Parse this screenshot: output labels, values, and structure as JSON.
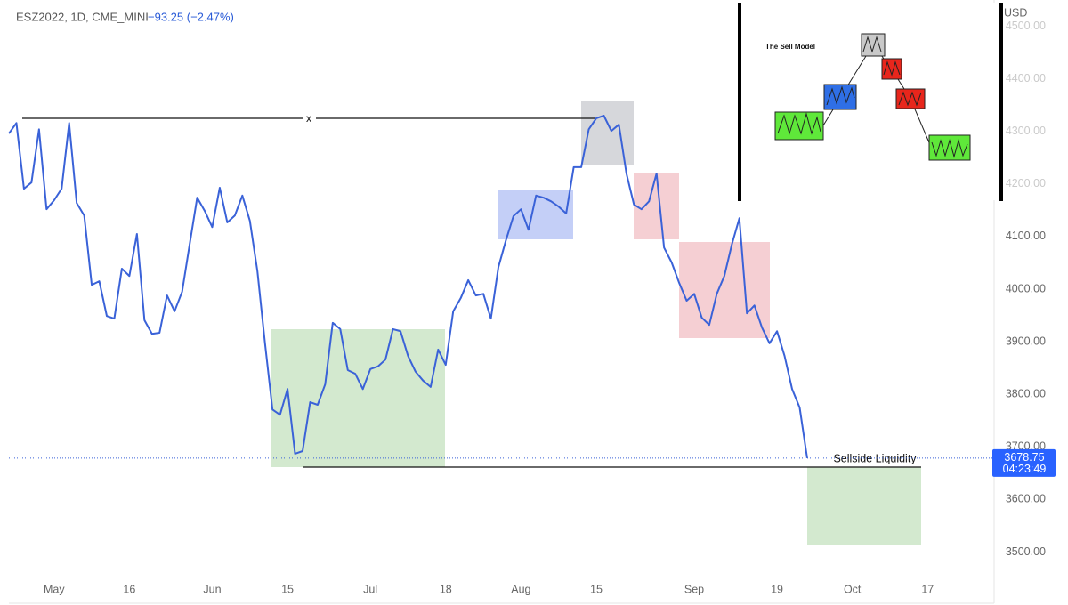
{
  "chart_data": {
    "type": "line",
    "title": "ESZ2022, 1D, CME_MINI",
    "subtitle": "−93.25 (−2.47%)",
    "unit": "USD",
    "countdown": "04:23:49",
    "annotations": {
      "level_marker": "x",
      "liquidity": "Sellside Liquidity",
      "inset_title": "The Sell Model"
    },
    "color": "#3a62d8",
    "grid": false,
    "ylim": [
      3450,
      4550
    ],
    "yticks": [
      {
        "value": 3500,
        "label": "3500.00"
      },
      {
        "value": 3600,
        "label": "3600.00"
      },
      {
        "value": 3700,
        "label": "3700.00"
      },
      {
        "value": 3800,
        "label": "3800.00"
      },
      {
        "value": 3900,
        "label": "3900.00"
      },
      {
        "value": 4000,
        "label": "4000.00"
      },
      {
        "value": 4100,
        "label": "4100.00"
      },
      {
        "value": 4200,
        "label": "4200.00"
      },
      {
        "value": 4300,
        "label": "4300.00"
      },
      {
        "value": 4400,
        "label": "4400.00"
      },
      {
        "value": 4500,
        "label": "4500.00"
      }
    ],
    "categories": [
      null,
      null,
      null,
      null,
      null,
      null,
      "May",
      null,
      null,
      null,
      null,
      null,
      null,
      null,
      null,
      null,
      "16",
      null,
      null,
      null,
      null,
      null,
      null,
      null,
      null,
      null,
      null,
      "Jun",
      null,
      null,
      null,
      null,
      null,
      null,
      null,
      null,
      null,
      "15",
      null,
      null,
      null,
      null,
      null,
      null,
      null,
      null,
      null,
      null,
      "Jul",
      null,
      null,
      null,
      null,
      null,
      null,
      null,
      null,
      null,
      "18",
      null,
      null,
      null,
      null,
      null,
      null,
      null,
      null,
      null,
      "Aug",
      null,
      null,
      null,
      null,
      null,
      null,
      null,
      null,
      null,
      "15",
      null,
      null,
      null,
      null,
      null,
      null,
      null,
      null,
      null,
      null,
      null,
      null,
      "Sep",
      null,
      null,
      null,
      null,
      null,
      null,
      null,
      null,
      null,
      null,
      "19",
      null,
      null,
      null,
      null,
      null,
      null,
      null,
      null,
      null,
      "Oct",
      null,
      null,
      null,
      null,
      null,
      null,
      null,
      null,
      null,
      "17",
      null,
      null,
      null,
      null,
      null,
      null,
      null,
      null
    ],
    "values": [
      4296,
      4316,
      4191,
      4203,
      4304,
      4152,
      4169,
      4191,
      4316,
      4164,
      4140,
      4008,
      4015,
      3949,
      3944,
      4039,
      4025,
      4105,
      3941,
      3915,
      3917,
      3988,
      3958,
      3995,
      4085,
      4174,
      4149,
      4118,
      4193,
      4127,
      4140,
      4178,
      4130,
      4034,
      3898,
      3771,
      3761,
      3810,
      3687,
      3692,
      3785,
      3780,
      3819,
      3936,
      3924,
      3846,
      3839,
      3810,
      3848,
      3853,
      3866,
      3924,
      3920,
      3873,
      3843,
      3826,
      3814,
      3885,
      3856,
      3958,
      3983,
      4017,
      3988,
      3991,
      3944,
      4042,
      4093,
      4139,
      4152,
      4113,
      4178,
      4174,
      4167,
      4157,
      4144,
      4232,
      4232,
      4304,
      4325,
      4330,
      4301,
      4313,
      4220,
      4161,
      4152,
      4167,
      4220,
      4079,
      4051,
      4012,
      3978,
      3991,
      3946,
      3932,
      3991,
      4025,
      4085,
      4135,
      3954,
      3969,
      3927,
      3897,
      3920,
      3873,
      3810,
      3775,
      3678.75,
      null,
      null,
      null,
      null,
      null,
      null,
      null,
      null,
      null,
      null,
      null,
      null,
      null,
      null,
      null,
      null,
      null,
      null,
      null,
      null,
      null,
      null,
      null,
      null
    ]
  }
}
